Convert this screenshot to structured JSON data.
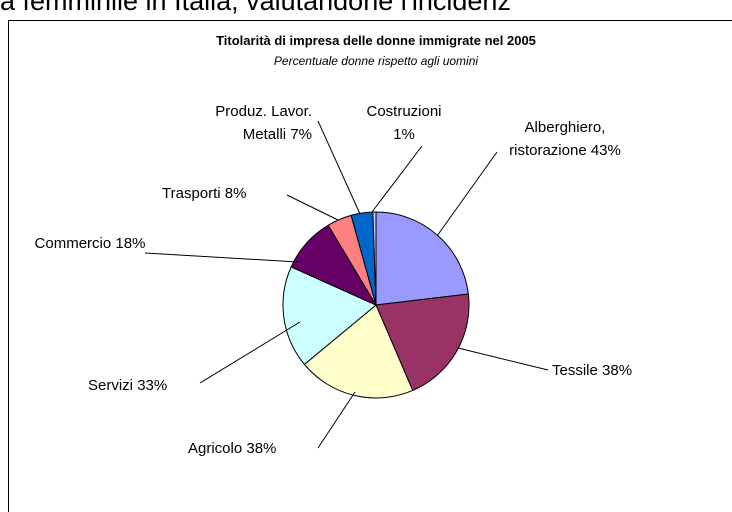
{
  "page_header": "a femminile in Italia, valutandone l'incidenz",
  "chart_data": {
    "type": "pie",
    "title": "Titolarità di impresa delle donne immigrate nel 2005",
    "subtitle": "Percentuale donne rispetto agli uomini",
    "categories": [
      "Alberghiero, ristorazione",
      "Tessile",
      "Agricolo",
      "Servizi",
      "Commercio",
      "Trasporti",
      "Produz. Lavor. Metalli",
      "Costruzioni"
    ],
    "values": [
      43,
      38,
      38,
      33,
      18,
      8,
      7,
      1
    ],
    "value_labels": [
      "43%",
      "38%",
      "38%",
      "33%",
      "18%",
      "8%",
      "7%",
      "1%"
    ],
    "colors": [
      "#9999ff",
      "#993366",
      "#ffffcc",
      "#ccffff",
      "#660066",
      "#ff8080",
      "#0066cc",
      "#ccccff"
    ]
  }
}
